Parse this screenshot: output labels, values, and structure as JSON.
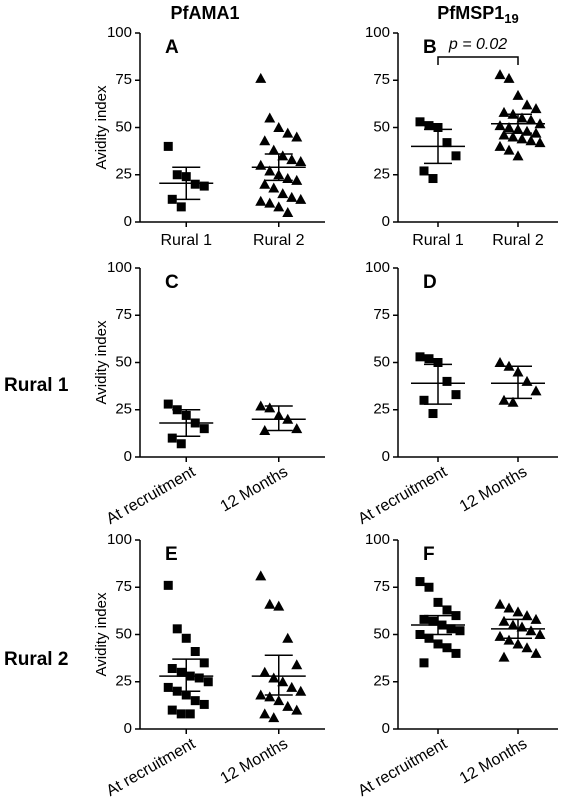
{
  "column_titles": [
    {
      "text": "PfAMA1"
    },
    {
      "text": "PfMSP1",
      "subscript": "19"
    }
  ],
  "row_labels": [
    "Rural 1",
    "Rural 2"
  ],
  "chart_data": [
    {
      "type": "dotplot",
      "label": "A",
      "ylabel": "Avidity index",
      "categories": [
        "Rural 1",
        "Rural 2"
      ],
      "ylim": [
        0,
        100
      ],
      "yticks": [
        0,
        25,
        50,
        75,
        100
      ],
      "rotate_labels": false,
      "groups": [
        {
          "marker": "square",
          "color": "#000000",
          "values": [
            40,
            25,
            24,
            20,
            19,
            12,
            8
          ],
          "mean": 20.5,
          "ci": [
            12,
            29
          ]
        },
        {
          "marker": "triangle",
          "color": "#000000",
          "values": [
            76,
            55,
            50,
            47,
            45,
            43,
            38,
            35,
            33,
            32,
            30,
            27,
            25,
            23,
            22,
            20,
            18,
            15,
            13,
            12,
            11,
            10,
            8,
            5
          ],
          "mean": 29,
          "ci": [
            22,
            36
          ]
        }
      ]
    },
    {
      "type": "dotplot",
      "label": "B",
      "annotation": "p = 0.02",
      "categories": [
        "Rural 1",
        "Rural 2"
      ],
      "ylim": [
        0,
        100
      ],
      "yticks": [
        0,
        25,
        50,
        75,
        100
      ],
      "rotate_labels": false,
      "groups": [
        {
          "marker": "square",
          "color": "#000000",
          "values": [
            53,
            51,
            50,
            42,
            35,
            27,
            23
          ],
          "mean": 40,
          "ci": [
            31,
            49
          ]
        },
        {
          "marker": "triangle",
          "color": "#000000",
          "values": [
            78,
            76,
            67,
            62,
            60,
            58,
            57,
            55,
            54,
            52,
            51,
            50,
            49,
            48,
            47,
            46,
            45,
            44,
            43,
            42,
            40,
            38,
            35
          ],
          "mean": 52,
          "ci": [
            47,
            57
          ]
        }
      ]
    },
    {
      "type": "dotplot",
      "label": "C",
      "ylabel": "Avidity index",
      "categories": [
        "At recruitment",
        "12 Months"
      ],
      "ylim": [
        0,
        100
      ],
      "yticks": [
        0,
        25,
        50,
        75,
        100
      ],
      "rotate_labels": true,
      "groups": [
        {
          "marker": "square",
          "color": "#000000",
          "values": [
            28,
            25,
            22,
            18,
            15,
            10,
            7
          ],
          "mean": 18,
          "ci": [
            11,
            25
          ]
        },
        {
          "marker": "triangle",
          "color": "#000000",
          "values": [
            27,
            26,
            22,
            20,
            15,
            14
          ],
          "mean": 20,
          "ci": [
            14,
            27
          ]
        }
      ]
    },
    {
      "type": "dotplot",
      "label": "D",
      "categories": [
        "At recruitment",
        "12 Months"
      ],
      "ylim": [
        0,
        100
      ],
      "yticks": [
        0,
        25,
        50,
        75,
        100
      ],
      "rotate_labels": true,
      "groups": [
        {
          "marker": "square",
          "color": "#000000",
          "values": [
            53,
            52,
            50,
            40,
            33,
            30,
            23
          ],
          "mean": 39,
          "ci": [
            28,
            49
          ]
        },
        {
          "marker": "triangle",
          "color": "#000000",
          "values": [
            50,
            48,
            45,
            40,
            35,
            30,
            29
          ],
          "mean": 39,
          "ci": [
            31,
            48
          ]
        }
      ]
    },
    {
      "type": "dotplot",
      "label": "E",
      "ylabel": "Avidity index",
      "categories": [
        "At recruitment",
        "12 Months"
      ],
      "ylim": [
        0,
        100
      ],
      "yticks": [
        0,
        25,
        50,
        75,
        100
      ],
      "rotate_labels": true,
      "groups": [
        {
          "marker": "square",
          "color": "#000000",
          "values": [
            76,
            53,
            48,
            41,
            35,
            32,
            30,
            28,
            27,
            25,
            22,
            20,
            18,
            15,
            13,
            10,
            8,
            8
          ],
          "mean": 28,
          "ci": [
            20,
            37
          ]
        },
        {
          "marker": "triangle",
          "color": "#000000",
          "values": [
            81,
            66,
            65,
            48,
            34,
            30,
            27,
            25,
            22,
            20,
            18,
            17,
            15,
            12,
            10,
            8,
            6
          ],
          "mean": 28,
          "ci": [
            18,
            39
          ]
        }
      ]
    },
    {
      "type": "dotplot",
      "label": "F",
      "categories": [
        "At recruitment",
        "12 Months"
      ],
      "ylim": [
        0,
        100
      ],
      "yticks": [
        0,
        25,
        50,
        75,
        100
      ],
      "rotate_labels": true,
      "groups": [
        {
          "marker": "square",
          "color": "#000000",
          "values": [
            78,
            75,
            67,
            63,
            60,
            58,
            57,
            55,
            53,
            52,
            50,
            48,
            45,
            43,
            40,
            35
          ],
          "mean": 55,
          "ci": [
            50,
            60
          ]
        },
        {
          "marker": "triangle",
          "color": "#000000",
          "values": [
            66,
            64,
            62,
            60,
            58,
            57,
            55,
            54,
            52,
            50,
            49,
            47,
            45,
            43,
            40,
            38
          ],
          "mean": 53,
          "ci": [
            48,
            58
          ]
        }
      ]
    }
  ]
}
